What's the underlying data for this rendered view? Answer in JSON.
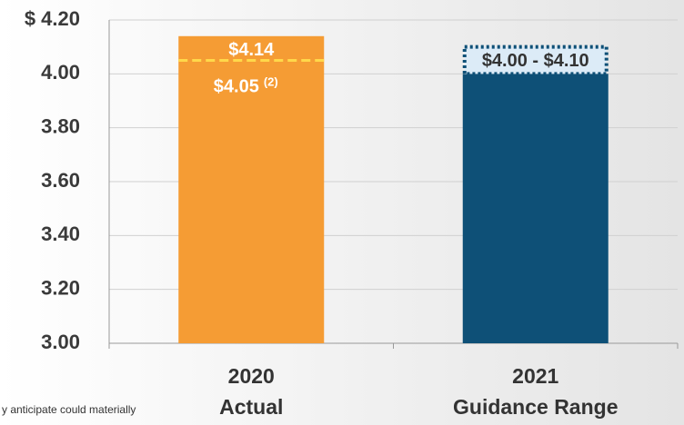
{
  "chart_data": {
    "type": "bar",
    "categories": [
      [
        "2020",
        "Actual"
      ],
      [
        "2021",
        "Guidance Range"
      ]
    ],
    "values": [
      4.14,
      4.0
    ],
    "colors": [
      "#f59c34",
      "#0e5077"
    ],
    "ylim": [
      3.0,
      4.2
    ],
    "yticks": [
      {
        "value": 3.0,
        "label": "3.00"
      },
      {
        "value": 3.2,
        "label": "3.20"
      },
      {
        "value": 3.4,
        "label": "3.40"
      },
      {
        "value": 3.6,
        "label": "3.60"
      },
      {
        "value": 3.8,
        "label": "3.80"
      },
      {
        "value": 4.0,
        "label": "4.00"
      },
      {
        "value": 4.2,
        "label": "$ 4.20"
      }
    ],
    "grid": true,
    "annotations": [
      {
        "category": 0,
        "value": 4.14,
        "label": "$4.14"
      },
      {
        "category": 0,
        "value": 4.05,
        "label": "$4.05",
        "note": "(2)",
        "color": "#ffd84a",
        "style": "dashed"
      },
      {
        "category": 1,
        "range": [
          4.0,
          4.1
        ],
        "label": "$4.00 - $4.10",
        "color": "#dcebf7",
        "style": "dotted"
      }
    ],
    "footnote": "y anticipate could materially"
  }
}
